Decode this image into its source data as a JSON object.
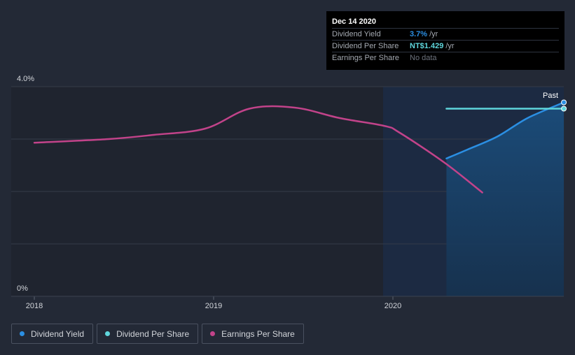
{
  "chart_data": {
    "type": "line",
    "x_ticks": [
      "2018",
      "2019",
      "2020"
    ],
    "y_ticks": [
      "4.0%",
      "0%"
    ],
    "ylim": [
      0,
      4.0
    ],
    "past_label": "Past",
    "series": [
      {
        "name": "Dividend Yield",
        "color": "#2b8fe3",
        "points": [
          [
            "2020-04-19",
            2.63
          ],
          [
            "2020-06-01",
            2.8
          ],
          [
            "2020-08-01",
            3.05
          ],
          [
            "2020-10-01",
            3.4
          ],
          [
            "2020-12-14",
            3.7
          ]
        ]
      },
      {
        "name": "Dividend Per Share",
        "color": "#5fd6dc",
        "points": [
          [
            "2020-04-19",
            3.58
          ],
          [
            "2020-12-14",
            3.58
          ]
        ]
      },
      {
        "name": "Earnings Per Share",
        "color": "#c2438a",
        "points": [
          [
            "2018-01-01",
            2.93
          ],
          [
            "2018-06-01",
            3.0
          ],
          [
            "2018-09-01",
            3.08
          ],
          [
            "2018-12-15",
            3.2
          ],
          [
            "2019-03-15",
            3.58
          ],
          [
            "2019-06-15",
            3.6
          ],
          [
            "2019-09-15",
            3.4
          ],
          [
            "2019-12-15",
            3.25
          ],
          [
            "2020-01-15",
            3.12
          ],
          [
            "2020-04-15",
            2.55
          ],
          [
            "2020-07-01",
            1.98
          ]
        ]
      }
    ]
  },
  "tooltip": {
    "date": "Dec 14 2020",
    "rows": [
      {
        "label": "Dividend Yield",
        "value": "3.7%",
        "unit": "/yr",
        "color": "#2b8fe3"
      },
      {
        "label": "Dividend Per Share",
        "value": "NT$1.429",
        "unit": "/yr",
        "color": "#5fd6dc"
      },
      {
        "label": "Earnings Per Share",
        "value": "No data",
        "unit": "",
        "color": "#6d737d"
      }
    ]
  },
  "legend": [
    {
      "label": "Dividend Yield",
      "color": "#2b8fe3"
    },
    {
      "label": "Dividend Per Share",
      "color": "#5fd6dc"
    },
    {
      "label": "Earnings Per Share",
      "color": "#c2438a"
    }
  ]
}
